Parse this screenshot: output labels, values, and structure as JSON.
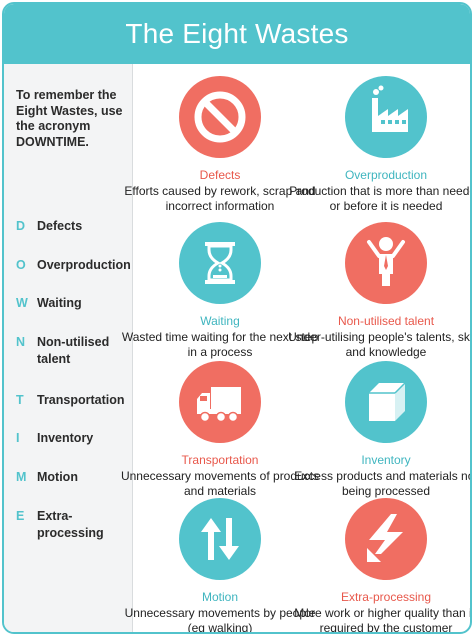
{
  "header": {
    "title": "The Eight Wastes"
  },
  "sidebar": {
    "intro": "To remember the Eight Wastes, use the acronym DOWNTIME.",
    "acronym": [
      {
        "letter": "D",
        "word": "Defects"
      },
      {
        "letter": "O",
        "word": "Overproduction"
      },
      {
        "letter": "W",
        "word": "Waiting"
      },
      {
        "letter": "N",
        "word": "Non-utilised talent"
      },
      {
        "letter": "T",
        "word": "Transportation"
      },
      {
        "letter": "I",
        "word": "Inventory"
      },
      {
        "letter": "M",
        "word": "Motion"
      },
      {
        "letter": "E",
        "word": "Extra-processing"
      }
    ]
  },
  "wastes": [
    {
      "title": "Defects",
      "desc": "Efforts caused by rework, scrap and incorrect information",
      "icon": "prohibited-icon",
      "color": "#f06e62"
    },
    {
      "title": "Overproduction",
      "desc": "Production that is more than needed or before it is needed",
      "icon": "factory-icon",
      "color": "#52c3cc"
    },
    {
      "title": "Waiting",
      "desc": "Wasted time waiting for the next step in a process",
      "icon": "hourglass-icon",
      "color": "#52c3cc"
    },
    {
      "title": "Non-utilised talent",
      "desc": "Under-utilising people's talents, skills and knowledge",
      "icon": "person-icon",
      "color": "#f06e62"
    },
    {
      "title": "Transportation",
      "desc": "Unnecessary movements of products and materials",
      "icon": "truck-icon",
      "color": "#f06e62"
    },
    {
      "title": "Inventory",
      "desc": "Excess products and materials not being processed",
      "icon": "box-icon",
      "color": "#52c3cc"
    },
    {
      "title": "Motion",
      "desc": "Unnecessary movements by people (eg walking)",
      "icon": "up-down-arrows-icon",
      "color": "#52c3cc"
    },
    {
      "title": "Extra-processing",
      "desc": "More work or higher quality than is required by the customer",
      "icon": "lightning-arrow-icon",
      "color": "#f06e62"
    }
  ]
}
